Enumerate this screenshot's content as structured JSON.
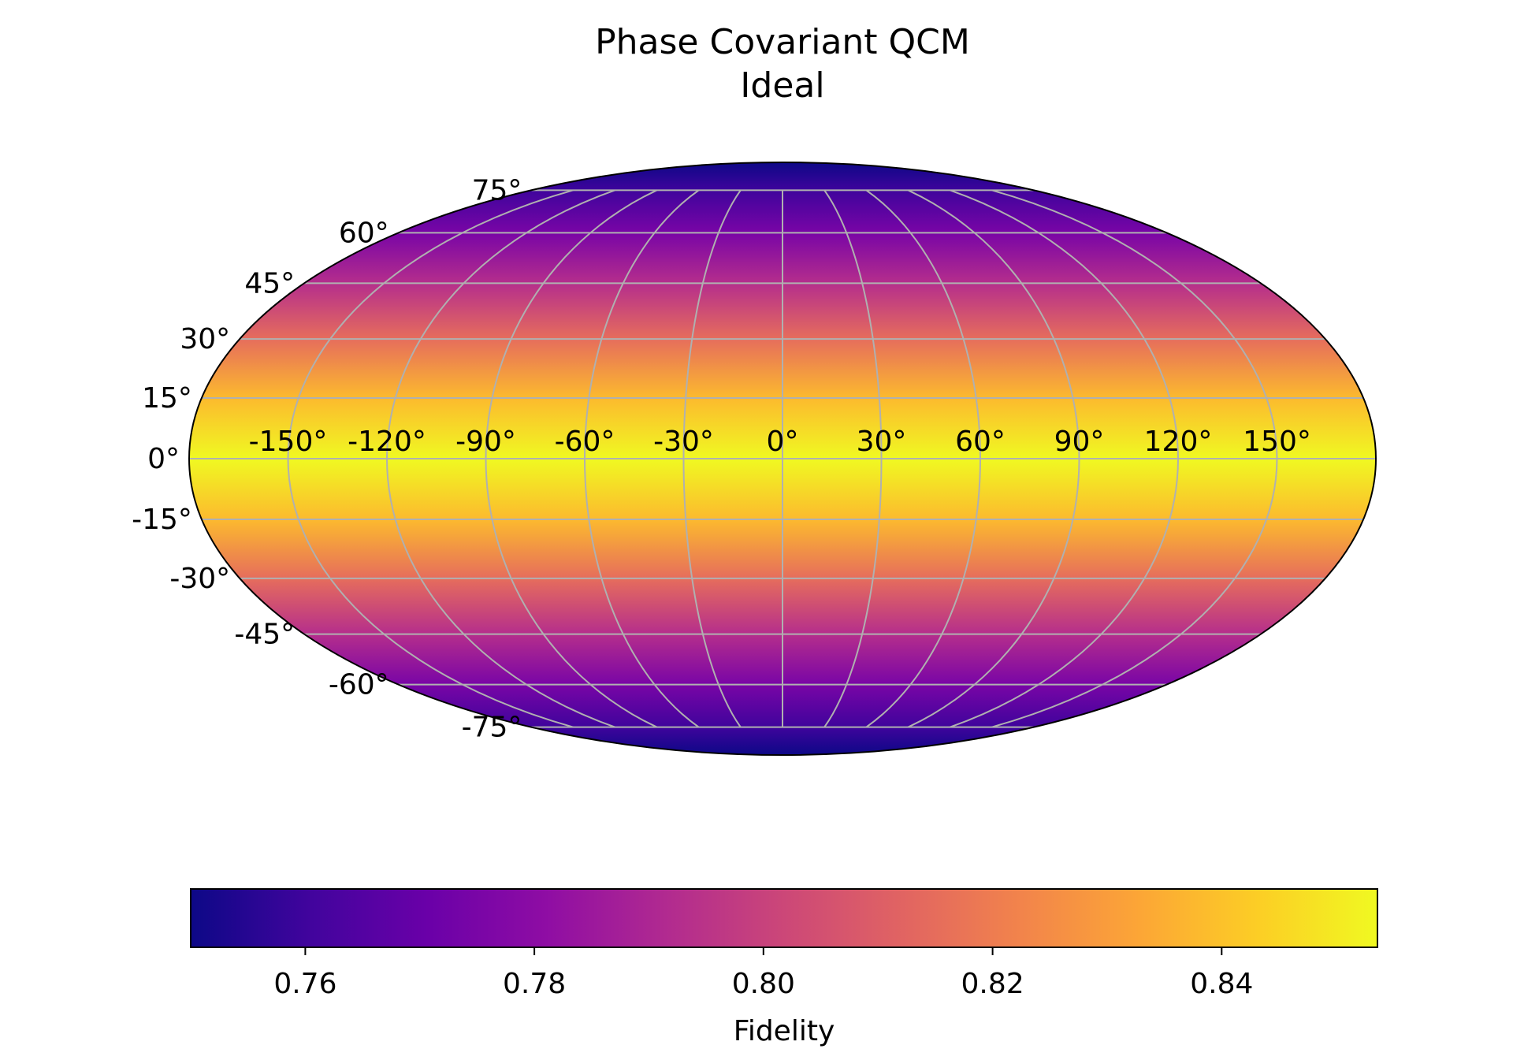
{
  "chart_data": {
    "type": "heatmap",
    "projection": "mollweide",
    "title": "Phase Covariant QCM",
    "subtitle": "Ideal",
    "colormap": "plasma",
    "grid": true,
    "longitude_tick_labels": [
      "-150°",
      "-120°",
      "-90°",
      "-60°",
      "-30°",
      "0°",
      "30°",
      "60°",
      "90°",
      "120°",
      "150°"
    ],
    "longitude_ticks": [
      -150,
      -120,
      -90,
      -60,
      -30,
      0,
      30,
      60,
      90,
      120,
      150
    ],
    "latitude_tick_labels": [
      "75°",
      "60°",
      "45°",
      "30°",
      "15°",
      "0°",
      "-15°",
      "-30°",
      "-45°",
      "-60°",
      "-75°"
    ],
    "latitude_ticks": [
      75,
      60,
      45,
      30,
      15,
      0,
      -15,
      -30,
      -45,
      -60,
      -75
    ],
    "fidelity_by_latitude": {
      "latitude": [
        90,
        75,
        60,
        45,
        30,
        15,
        0,
        -15,
        -30,
        -45,
        -60,
        -75,
        -90
      ],
      "values": [
        0.75,
        0.76,
        0.775,
        0.793,
        0.815,
        0.838,
        0.8536,
        0.838,
        0.815,
        0.793,
        0.775,
        0.76,
        0.75
      ]
    },
    "colorbar": {
      "label": "Fidelity",
      "range": [
        0.75,
        0.8536
      ],
      "tick_values": [
        0.76,
        0.78,
        0.8,
        0.82,
        0.84
      ],
      "tick_labels": [
        "0.76",
        "0.78",
        "0.80",
        "0.82",
        "0.84"
      ]
    }
  }
}
